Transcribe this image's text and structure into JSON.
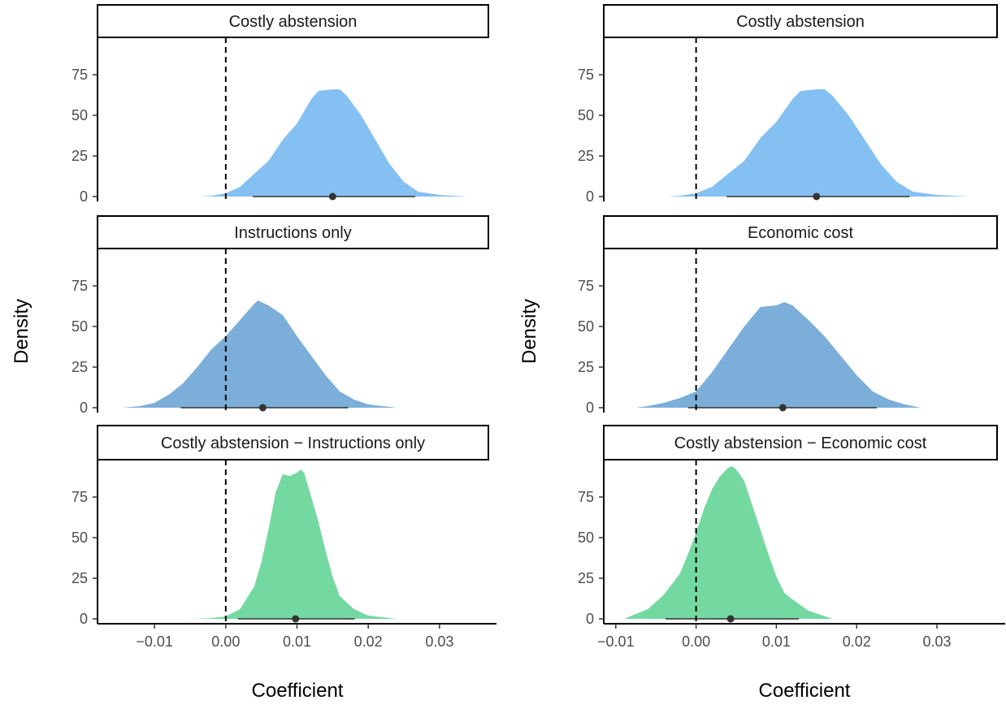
{
  "chart_data": [
    {
      "type": "area",
      "column": "left",
      "xlabel": "Coefficient",
      "ylabel": "Density",
      "xlim": [
        -0.018,
        0.038
      ],
      "ylim": [
        -3,
        98
      ],
      "xticks": [
        -0.01,
        0.0,
        0.01,
        0.02,
        0.03
      ],
      "xtick_labels": [
        "−0.01",
        "0.00",
        "0.01",
        "0.02",
        "0.03"
      ],
      "yticks": [
        0,
        25,
        50,
        75
      ],
      "ytick_labels": [
        "0",
        "25",
        "50",
        "75"
      ],
      "reference_line_x": 0,
      "grid": false,
      "panels": [
        {
          "strip": "Costly abstension",
          "color": "#85C0F2",
          "density": [
            [
              -0.0035,
              0
            ],
            [
              -0.002,
              0.5
            ],
            [
              0,
              2
            ],
            [
              0.002,
              6
            ],
            [
              0.004,
              14
            ],
            [
              0.006,
              22
            ],
            [
              0.008,
              35
            ],
            [
              0.01,
              45
            ],
            [
              0.012,
              60
            ],
            [
              0.013,
              65
            ],
            [
              0.015,
              66
            ],
            [
              0.016,
              66
            ],
            [
              0.017,
              62
            ],
            [
              0.019,
              50
            ],
            [
              0.021,
              35
            ],
            [
              0.023,
              20
            ],
            [
              0.025,
              9
            ],
            [
              0.027,
              3
            ],
            [
              0.03,
              1
            ],
            [
              0.034,
              0
            ]
          ],
          "point": 0.015,
          "interval": [
            0.0038,
            0.0266
          ]
        },
        {
          "strip": "Instructions only",
          "color": "#7BAED9",
          "density": [
            [
              -0.0145,
              0
            ],
            [
              -0.012,
              1
            ],
            [
              -0.01,
              3
            ],
            [
              -0.008,
              8
            ],
            [
              -0.006,
              15
            ],
            [
              -0.004,
              25
            ],
            [
              -0.002,
              36
            ],
            [
              0,
              44
            ],
            [
              0.002,
              54
            ],
            [
              0.004,
              64
            ],
            [
              0.0045,
              66
            ],
            [
              0.006,
              63
            ],
            [
              0.008,
              57
            ],
            [
              0.01,
              44
            ],
            [
              0.012,
              32
            ],
            [
              0.014,
              20
            ],
            [
              0.016,
              10
            ],
            [
              0.018,
              5
            ],
            [
              0.02,
              2
            ],
            [
              0.024,
              0
            ]
          ],
          "point": 0.0052,
          "interval": [
            -0.0063,
            0.0172
          ]
        },
        {
          "strip": "Costly abstension − Instructions only",
          "color": "#74D9A1",
          "density": [
            [
              -0.0045,
              0
            ],
            [
              -0.002,
              0.5
            ],
            [
              0,
              1.5
            ],
            [
              0.002,
              6
            ],
            [
              0.004,
              20
            ],
            [
              0.005,
              35
            ],
            [
              0.006,
              55
            ],
            [
              0.007,
              78
            ],
            [
              0.008,
              89
            ],
            [
              0.009,
              88
            ],
            [
              0.01,
              90
            ],
            [
              0.0105,
              92
            ],
            [
              0.011,
              90
            ],
            [
              0.012,
              75
            ],
            [
              0.013,
              60
            ],
            [
              0.014,
              42
            ],
            [
              0.015,
              26
            ],
            [
              0.016,
              14
            ],
            [
              0.018,
              6
            ],
            [
              0.02,
              2
            ],
            [
              0.024,
              0
            ]
          ],
          "point": 0.0098,
          "interval": [
            0.0017,
            0.0181
          ]
        }
      ]
    },
    {
      "type": "area",
      "column": "right",
      "xlabel": "Coefficient",
      "ylabel": "Density",
      "xlim": [
        -0.0115,
        0.0385
      ],
      "ylim": [
        -3,
        98
      ],
      "xticks": [
        -0.01,
        0.0,
        0.01,
        0.02,
        0.03
      ],
      "xtick_labels": [
        "−0.01",
        "0.00",
        "0.01",
        "0.02",
        "0.03"
      ],
      "yticks": [
        0,
        25,
        50,
        75
      ],
      "ytick_labels": [
        "0",
        "25",
        "50",
        "75"
      ],
      "reference_line_x": 0,
      "grid": false,
      "panels": [
        {
          "strip": "Costly abstension",
          "color": "#85C0F2",
          "density": [
            [
              -0.0035,
              0
            ],
            [
              -0.002,
              0.5
            ],
            [
              0,
              2
            ],
            [
              0.002,
              6
            ],
            [
              0.004,
              14
            ],
            [
              0.006,
              22
            ],
            [
              0.008,
              36
            ],
            [
              0.01,
              46
            ],
            [
              0.012,
              60
            ],
            [
              0.013,
              65
            ],
            [
              0.015,
              66
            ],
            [
              0.016,
              66
            ],
            [
              0.017,
              62
            ],
            [
              0.019,
              50
            ],
            [
              0.021,
              35
            ],
            [
              0.023,
              20
            ],
            [
              0.025,
              9
            ],
            [
              0.027,
              3
            ],
            [
              0.03,
              1
            ],
            [
              0.034,
              0
            ]
          ],
          "point": 0.015,
          "interval": [
            0.0038,
            0.0266
          ]
        },
        {
          "strip": "Economic cost",
          "color": "#7BAED9",
          "density": [
            [
              -0.0075,
              0
            ],
            [
              -0.006,
              1
            ],
            [
              -0.004,
              3
            ],
            [
              -0.002,
              6
            ],
            [
              0,
              10
            ],
            [
              0.002,
              22
            ],
            [
              0.004,
              36
            ],
            [
              0.006,
              50
            ],
            [
              0.008,
              62
            ],
            [
              0.01,
              63
            ],
            [
              0.011,
              65
            ],
            [
              0.012,
              63
            ],
            [
              0.014,
              54
            ],
            [
              0.016,
              44
            ],
            [
              0.018,
              32
            ],
            [
              0.02,
              20
            ],
            [
              0.022,
              10
            ],
            [
              0.024,
              5
            ],
            [
              0.026,
              2
            ],
            [
              0.028,
              0
            ]
          ],
          "point": 0.0108,
          "interval": [
            -0.001,
            0.0225
          ]
        },
        {
          "strip": "Costly abstension − Economic cost",
          "color": "#74D9A1",
          "density": [
            [
              -0.009,
              0
            ],
            [
              -0.008,
              2
            ],
            [
              -0.006,
              6
            ],
            [
              -0.004,
              15
            ],
            [
              -0.002,
              28
            ],
            [
              -0.001,
              40
            ],
            [
              0,
              53
            ],
            [
              0.001,
              68
            ],
            [
              0.002,
              80
            ],
            [
              0.003,
              88
            ],
            [
              0.004,
              93
            ],
            [
              0.0045,
              94
            ],
            [
              0.005,
              92
            ],
            [
              0.006,
              85
            ],
            [
              0.007,
              70
            ],
            [
              0.008,
              55
            ],
            [
              0.009,
              40
            ],
            [
              0.01,
              26
            ],
            [
              0.011,
              16
            ],
            [
              0.012,
              12
            ],
            [
              0.014,
              5
            ],
            [
              0.017,
              0
            ]
          ],
          "point": 0.0043,
          "interval": [
            -0.0038,
            0.0128
          ]
        }
      ]
    }
  ]
}
